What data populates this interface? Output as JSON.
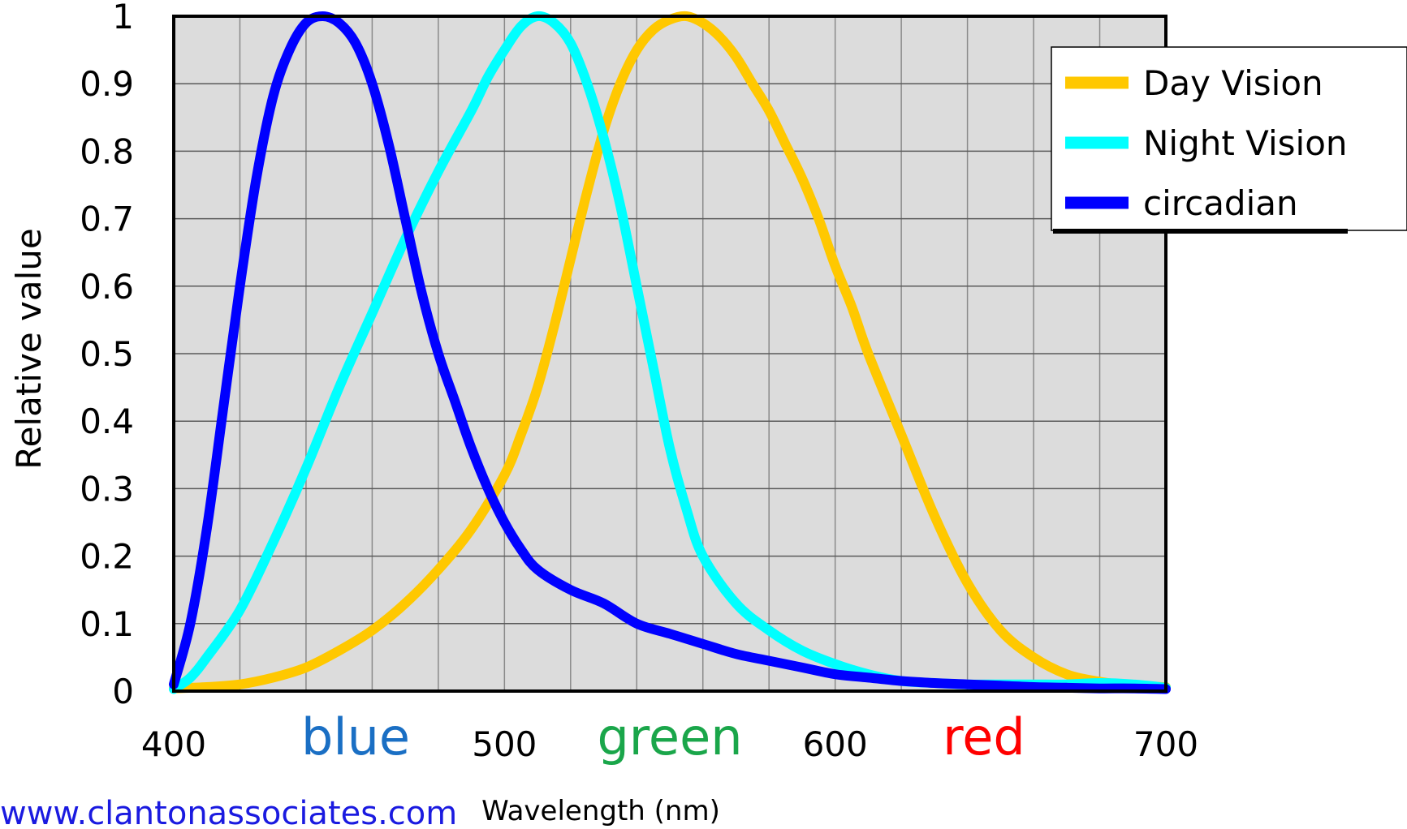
{
  "chart_data": {
    "type": "line",
    "ylabel": "Relative value",
    "xlabel": "Wavelength (nm)",
    "xlim": [
      400,
      700
    ],
    "ylim": [
      0,
      1
    ],
    "x_ticks": [
      "400",
      "500",
      "600",
      "700"
    ],
    "x_tick_values": [
      400,
      500,
      600,
      700
    ],
    "y_ticks": [
      "0",
      "0.1",
      "0.2",
      "0.3",
      "0.4",
      "0.5",
      "0.6",
      "0.7",
      "0.8",
      "0.9",
      "1"
    ],
    "y_tick_values": [
      0,
      0.1,
      0.2,
      0.3,
      0.4,
      0.5,
      0.6,
      0.7,
      0.8,
      0.9,
      1
    ],
    "x_grid_step": 20,
    "y_grid_step": 0.1,
    "grid": true,
    "plot_background": "#dcdcdc",
    "legend_position": "top-right",
    "band_labels": [
      {
        "text": "blue",
        "x": 455,
        "color": "#1a6fc4"
      },
      {
        "text": "green",
        "x": 550,
        "color": "#1aa64a"
      },
      {
        "text": "red",
        "x": 645,
        "color": "#ff0000"
      }
    ],
    "series": [
      {
        "name": "Day Vision",
        "color": "#ffc800",
        "x": [
          400,
          410,
          420,
          430,
          440,
          450,
          460,
          470,
          480,
          490,
          500,
          505,
          510,
          515,
          520,
          525,
          530,
          535,
          540,
          545,
          550,
          555,
          560,
          565,
          570,
          575,
          580,
          585,
          590,
          595,
          600,
          605,
          610,
          620,
          630,
          640,
          650,
          660,
          670,
          680,
          690,
          700
        ],
        "values": [
          0.004,
          0.006,
          0.01,
          0.02,
          0.035,
          0.06,
          0.09,
          0.13,
          0.18,
          0.24,
          0.32,
          0.38,
          0.45,
          0.54,
          0.64,
          0.74,
          0.83,
          0.9,
          0.95,
          0.98,
          0.995,
          1.0,
          0.99,
          0.97,
          0.94,
          0.9,
          0.86,
          0.81,
          0.76,
          0.7,
          0.63,
          0.57,
          0.5,
          0.38,
          0.26,
          0.16,
          0.09,
          0.05,
          0.025,
          0.014,
          0.008,
          0.006
        ]
      },
      {
        "name": "Night Vision",
        "color": "#00ffff",
        "x": [
          400,
          405,
          410,
          420,
          430,
          440,
          450,
          460,
          470,
          480,
          490,
          495,
          500,
          505,
          510,
          515,
          520,
          525,
          530,
          535,
          540,
          545,
          550,
          555,
          560,
          570,
          580,
          590,
          600,
          610,
          620,
          630,
          640,
          650,
          660,
          670,
          680,
          690,
          700
        ],
        "values": [
          0.003,
          0.02,
          0.05,
          0.12,
          0.22,
          0.33,
          0.45,
          0.56,
          0.67,
          0.77,
          0.86,
          0.91,
          0.95,
          0.985,
          1.0,
          0.99,
          0.96,
          0.9,
          0.82,
          0.72,
          0.6,
          0.48,
          0.36,
          0.27,
          0.2,
          0.13,
          0.09,
          0.06,
          0.04,
          0.025,
          0.015,
          0.012,
          0.01,
          0.01,
          0.01,
          0.01,
          0.012,
          0.01,
          0.005
        ]
      },
      {
        "name": "circadian",
        "color": "#0000ff",
        "x": [
          400,
          405,
          410,
          415,
          420,
          425,
          430,
          435,
          440,
          445,
          450,
          455,
          460,
          465,
          470,
          475,
          480,
          485,
          490,
          495,
          500,
          505,
          510,
          520,
          530,
          540,
          550,
          560,
          570,
          580,
          590,
          600,
          610,
          620,
          630,
          640,
          650,
          660,
          670,
          680,
          690,
          700
        ],
        "values": [
          0.01,
          0.1,
          0.24,
          0.42,
          0.6,
          0.76,
          0.88,
          0.95,
          0.99,
          1.0,
          0.99,
          0.96,
          0.9,
          0.81,
          0.7,
          0.59,
          0.5,
          0.43,
          0.36,
          0.3,
          0.25,
          0.21,
          0.18,
          0.15,
          0.13,
          0.1,
          0.085,
          0.07,
          0.055,
          0.045,
          0.035,
          0.025,
          0.02,
          0.015,
          0.012,
          0.01,
          0.008,
          0.006,
          0.005,
          0.004,
          0.004,
          0.003
        ]
      }
    ]
  },
  "footer": {
    "website": "www.clantonassociates.com"
  }
}
